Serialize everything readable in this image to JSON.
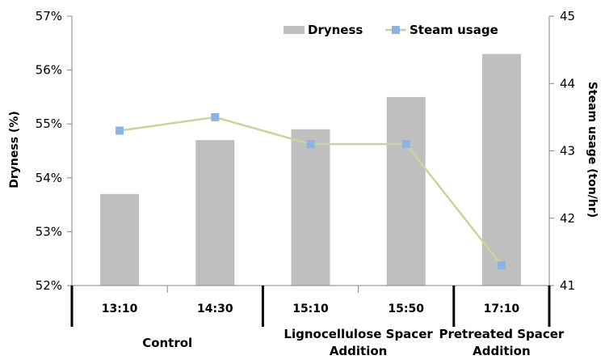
{
  "chart_data": {
    "type": "bar+line",
    "categories": [
      "13:10",
      "14:30",
      "15:10",
      "15:50",
      "17:10"
    ],
    "groups": [
      {
        "label": "Control",
        "categories": [
          "13:10",
          "14:30"
        ]
      },
      {
        "label": "Lignocellulose Spacer\nAddition",
        "categories": [
          "15:10",
          "15:50"
        ]
      },
      {
        "label": "Pretreated Spacer\nAddition",
        "categories": [
          "17:10"
        ]
      }
    ],
    "series": [
      {
        "name": "Dryness",
        "type": "bar",
        "axis": "left",
        "values": [
          53.7,
          54.7,
          54.9,
          55.5,
          56.3
        ],
        "color": "#bfbfbf"
      },
      {
        "name": "Steam usage",
        "type": "line",
        "axis": "right",
        "values": [
          43.3,
          43.5,
          43.1,
          43.1,
          41.3
        ],
        "color": "#c4d79b",
        "marker_color": "#8db3e2"
      }
    ],
    "y_left": {
      "label": "Dryness (%)",
      "min": 52,
      "max": 57,
      "step": 1,
      "format": "percent"
    },
    "y_right": {
      "label": "Steam usage (ton/hr)",
      "min": 41,
      "max": 45,
      "step": 1
    },
    "legend": "top-center",
    "grid": false
  }
}
